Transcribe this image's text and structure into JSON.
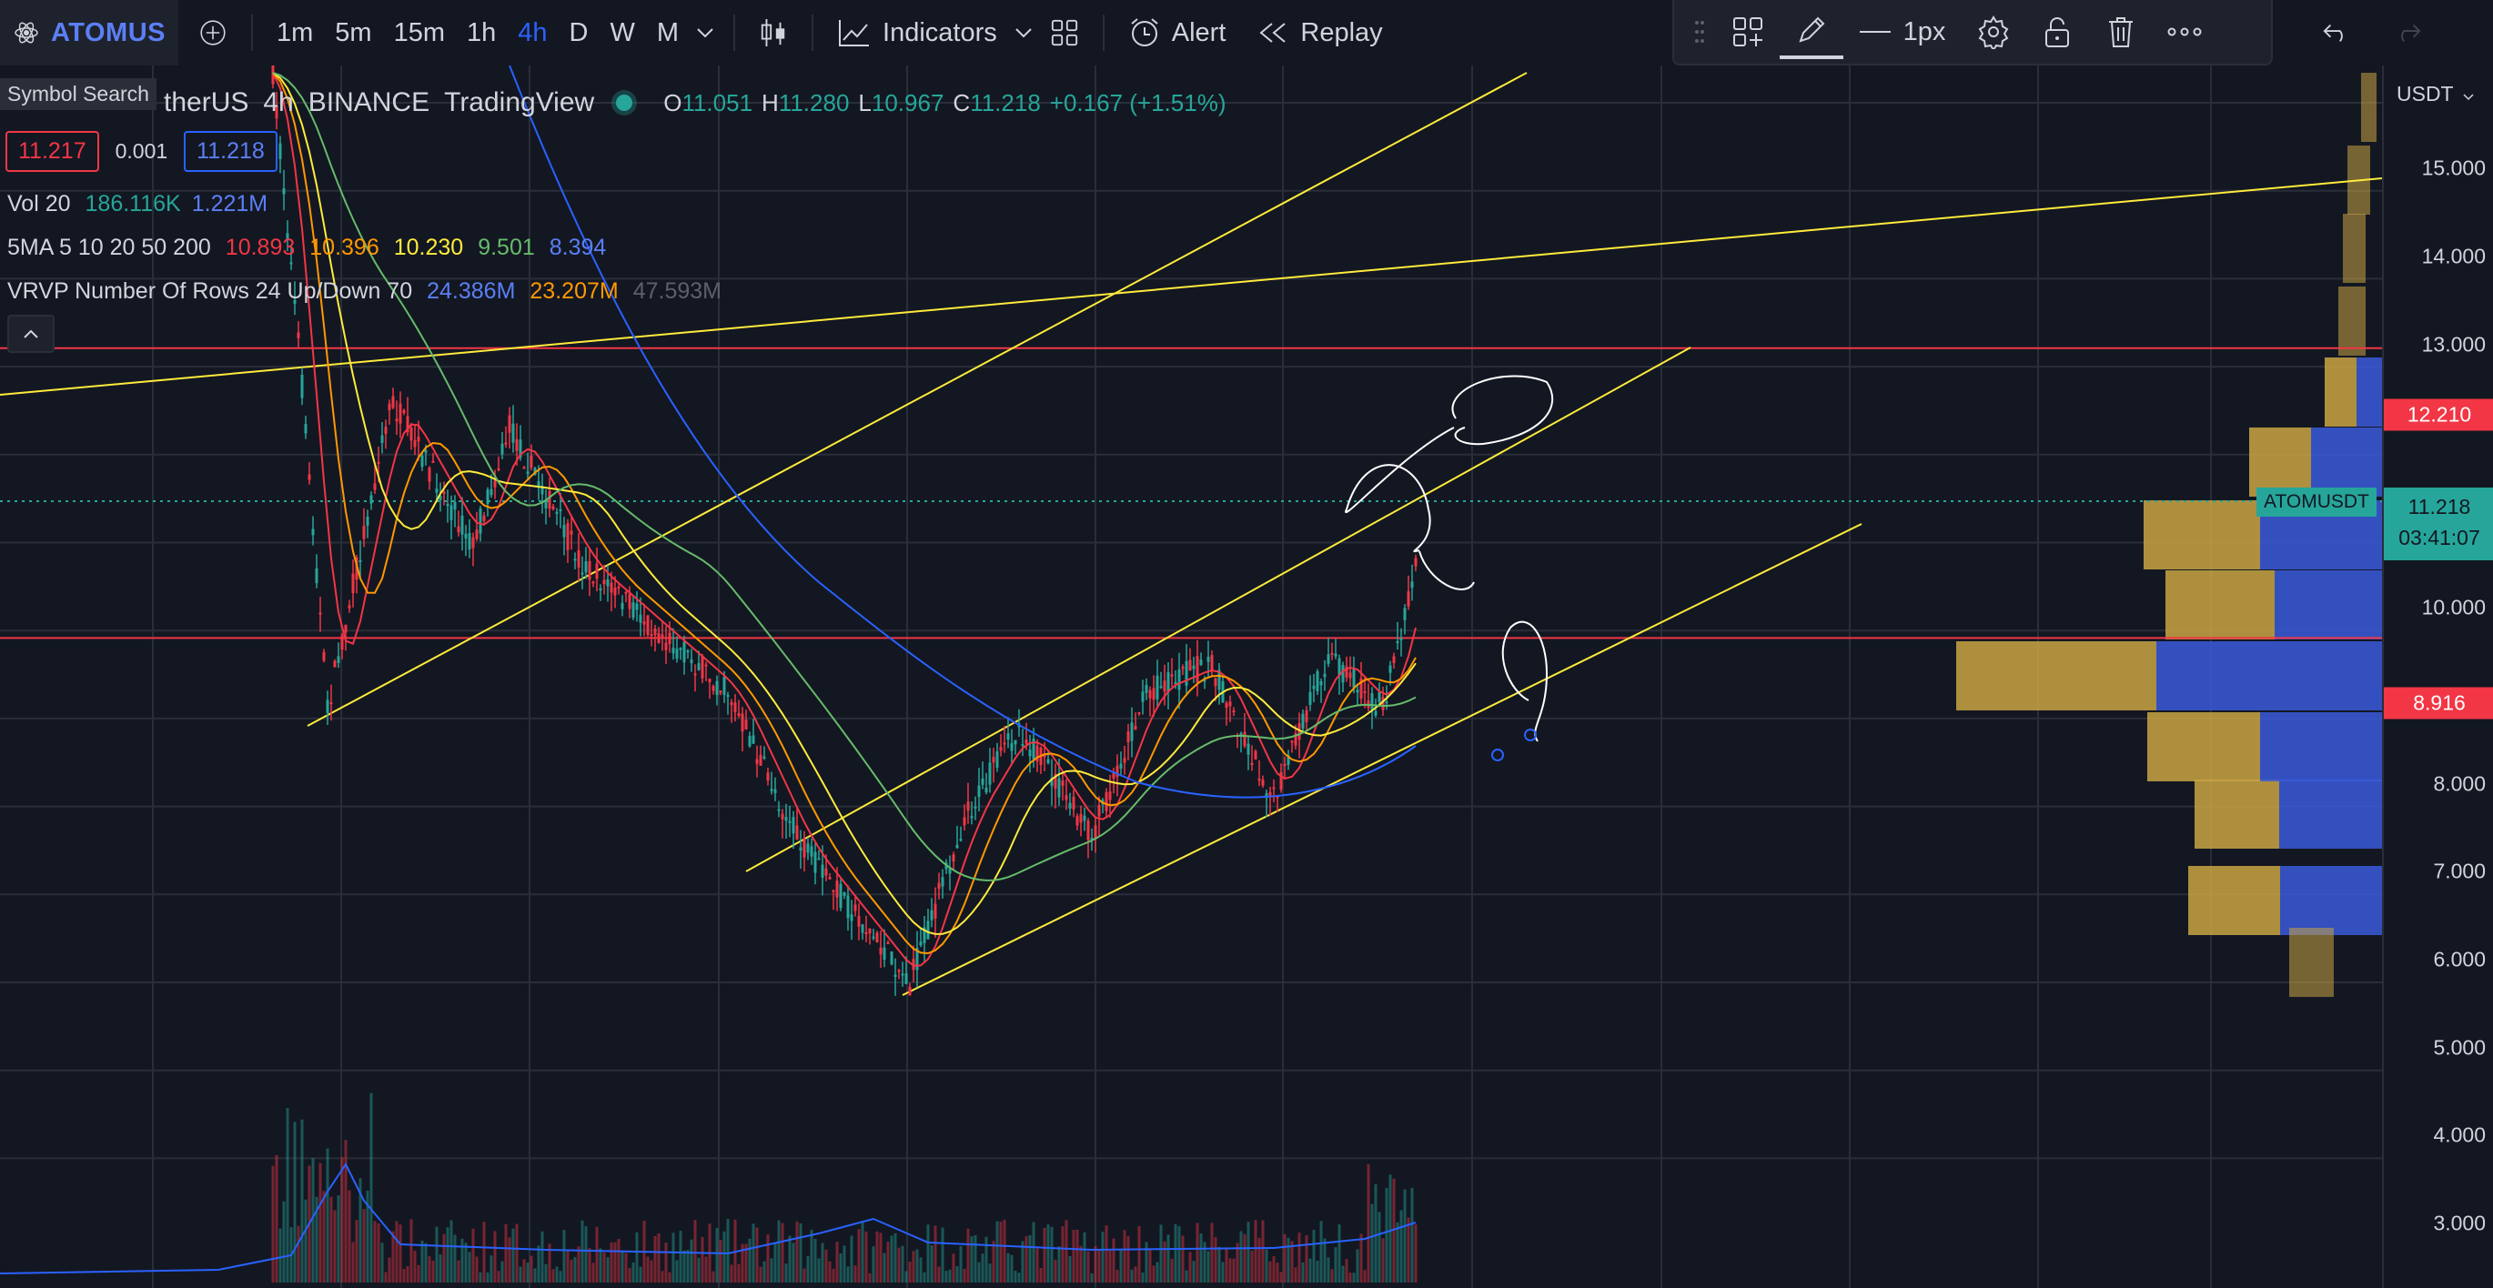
{
  "toolbar": {
    "symbol": "ATOMUS",
    "intervals": [
      "1m",
      "5m",
      "15m",
      "1h",
      "4h",
      "D",
      "W",
      "M"
    ],
    "active_interval": "4h",
    "indicators_label": "Indicators",
    "alert_label": "Alert",
    "replay_label": "Replay",
    "line_width_label": "1px"
  },
  "tooltip": {
    "symbol_search": "Symbol Search"
  },
  "legend": {
    "symbol_name": "therUS",
    "interval": "4h",
    "exchange": "BINANCE",
    "source": "TradingView",
    "ohlc": {
      "o_label": "O",
      "o": "11.051",
      "h_label": "H",
      "h": "11.280",
      "l_label": "L",
      "l": "10.967",
      "c_label": "C",
      "c": "11.218",
      "change": "+0.167 (+1.51%)"
    },
    "bid": "11.217",
    "spread": "0.001",
    "ask": "11.218"
  },
  "indicators": {
    "vol": {
      "label": "Vol 20",
      "v1": "186.116K",
      "v2": "1.221M"
    },
    "ma": {
      "label": "5MA 5 10 20 50 200",
      "v5": "10.893",
      "v10": "10.396",
      "v20": "10.230",
      "v50": "9.501",
      "v200": "8.394"
    },
    "vrvp": {
      "label": "VRVP Number Of Rows 24 Up/Down 70",
      "up": "24.386M",
      "down": "23.207M",
      "total": "47.593M"
    }
  },
  "price_axis": {
    "currency": "USDT",
    "ticks": [
      "15.000",
      "14.000",
      "13.000",
      "10.000",
      "8.000",
      "7.000",
      "6.000",
      "5.000",
      "4.000",
      "3.000"
    ],
    "hline_top_label": "12.210",
    "hline_bottom_label": "8.916",
    "current_price": "11.218",
    "countdown": "03:41:07",
    "current_symbol": "ATOMUSDT"
  },
  "colors": {
    "background": "#131722",
    "up": "#26a69a",
    "down": "#f23645",
    "accent": "#2962ff",
    "trendline": "#ffeb3b",
    "hline": "#f23645",
    "vp_up": "#c9a443",
    "vp_down": "#3b5bdb"
  }
}
